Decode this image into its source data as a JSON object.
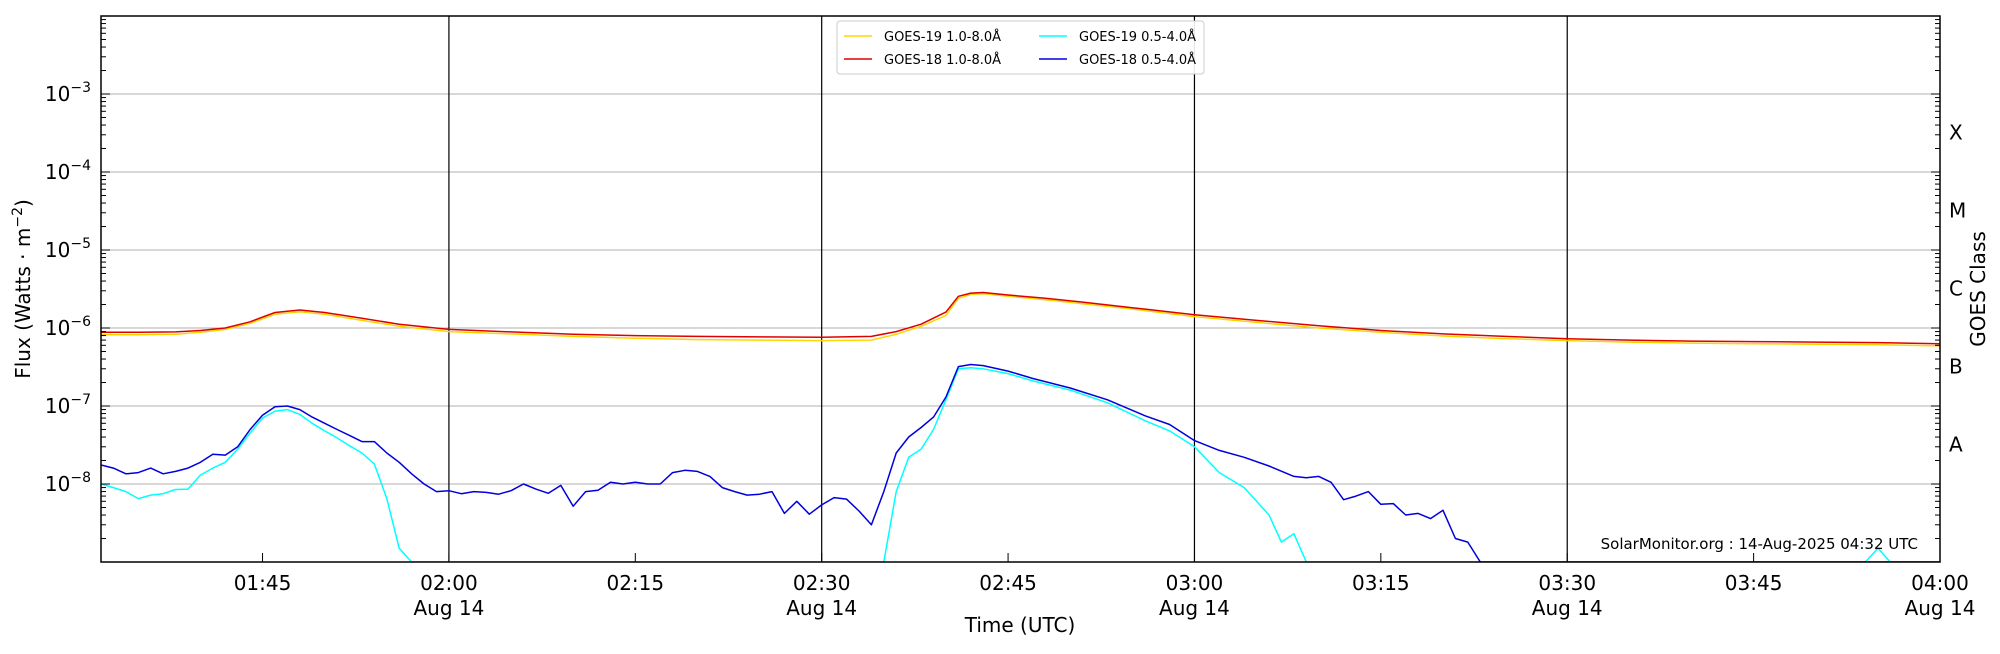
{
  "chart_data": {
    "type": "line",
    "xlabel": "Time (UTC)",
    "ylabel": "Flux (Watts · m",
    "ylabel_sup": "−2",
    "ylabel_close": ")",
    "right_label": "GOES Class",
    "credit": "SolarMonitor.org : 14-Aug-2025 04:32 UTC",
    "y_scale": "log",
    "ylim": [
      1e-09,
      0.01
    ],
    "xlim": [
      "01:32",
      "04:00"
    ],
    "grid": "horizontal",
    "legend_position": "top-center",
    "x_ticks": [
      {
        "time": "01:45",
        "label": "01:45",
        "sublabel": ""
      },
      {
        "time": "02:00",
        "label": "02:00",
        "sublabel": "Aug 14"
      },
      {
        "time": "02:15",
        "label": "02:15",
        "sublabel": ""
      },
      {
        "time": "02:30",
        "label": "02:30",
        "sublabel": "Aug 14"
      },
      {
        "time": "02:45",
        "label": "02:45",
        "sublabel": ""
      },
      {
        "time": "03:00",
        "label": "03:00",
        "sublabel": "Aug 14"
      },
      {
        "time": "03:15",
        "label": "03:15",
        "sublabel": ""
      },
      {
        "time": "03:30",
        "label": "03:30",
        "sublabel": "Aug 14"
      },
      {
        "time": "03:45",
        "label": "03:45",
        "sublabel": ""
      },
      {
        "time": "04:00",
        "label": "04:00",
        "sublabel": "Aug 14"
      }
    ],
    "vertical_lines": [
      "02:00",
      "02:30",
      "03:00",
      "03:30"
    ],
    "y_ticks": [
      {
        "value": 1e-08,
        "base": "10",
        "exp": "−8"
      },
      {
        "value": 1e-07,
        "base": "10",
        "exp": "−7"
      },
      {
        "value": 1e-06,
        "base": "10",
        "exp": "−6"
      },
      {
        "value": 1e-05,
        "base": "10",
        "exp": "−5"
      },
      {
        "value": 0.0001,
        "base": "10",
        "exp": "−4"
      },
      {
        "value": 0.001,
        "base": "10",
        "exp": "−3"
      }
    ],
    "goes_classes": [
      {
        "label": "A",
        "value": 3.2e-08
      },
      {
        "label": "B",
        "value": 3.2e-07
      },
      {
        "label": "C",
        "value": 3.2e-06
      },
      {
        "label": "M",
        "value": 3.2e-05
      },
      {
        "label": "X",
        "value": 0.00032
      }
    ],
    "series": [
      {
        "name": "GOES-19 1.0-8.0Å",
        "color": "#FFD700",
        "points": [
          [
            "01:32",
            8.2e-07
          ],
          [
            "01:35",
            8.2e-07
          ],
          [
            "01:38",
            8.3e-07
          ],
          [
            "01:40",
            8.8e-07
          ],
          [
            "01:42",
            9.6e-07
          ],
          [
            "01:44",
            1.15e-06
          ],
          [
            "01:46",
            1.5e-06
          ],
          [
            "01:48",
            1.62e-06
          ],
          [
            "01:50",
            1.5e-06
          ],
          [
            "01:53",
            1.25e-06
          ],
          [
            "01:56",
            1.05e-06
          ],
          [
            "02:00",
            9e-07
          ],
          [
            "02:05",
            8.4e-07
          ],
          [
            "02:10",
            7.8e-07
          ],
          [
            "02:15",
            7.4e-07
          ],
          [
            "02:20",
            7.1e-07
          ],
          [
            "02:25",
            7e-07
          ],
          [
            "02:30",
            6.9e-07
          ],
          [
            "02:34",
            7e-07
          ],
          [
            "02:36",
            8.3e-07
          ],
          [
            "02:38",
            1.05e-06
          ],
          [
            "02:40",
            1.45e-06
          ],
          [
            "02:41",
            2.4e-06
          ],
          [
            "02:42",
            2.7e-06
          ],
          [
            "02:43",
            2.75e-06
          ],
          [
            "02:45",
            2.55e-06
          ],
          [
            "02:48",
            2.3e-06
          ],
          [
            "02:51",
            2.05e-06
          ],
          [
            "02:55",
            1.75e-06
          ],
          [
            "03:00",
            1.4e-06
          ],
          [
            "03:05",
            1.18e-06
          ],
          [
            "03:10",
            1e-06
          ],
          [
            "03:15",
            8.8e-07
          ],
          [
            "03:20",
            7.9e-07
          ],
          [
            "03:25",
            7.3e-07
          ],
          [
            "03:30",
            6.9e-07
          ],
          [
            "03:35",
            6.6e-07
          ],
          [
            "03:40",
            6.4e-07
          ],
          [
            "03:45",
            6.3e-07
          ],
          [
            "03:50",
            6.2e-07
          ],
          [
            "03:55",
            6.1e-07
          ],
          [
            "04:00",
            5.9e-07
          ]
        ]
      },
      {
        "name": "GOES-18 1.0-8.0Å",
        "color": "#E00000",
        "points": [
          [
            "01:32",
            8.8e-07
          ],
          [
            "01:35",
            8.8e-07
          ],
          [
            "01:38",
            8.9e-07
          ],
          [
            "01:40",
            9.3e-07
          ],
          [
            "01:42",
            1e-06
          ],
          [
            "01:44",
            1.2e-06
          ],
          [
            "01:46",
            1.58e-06
          ],
          [
            "01:48",
            1.7e-06
          ],
          [
            "01:50",
            1.58e-06
          ],
          [
            "01:53",
            1.33e-06
          ],
          [
            "01:56",
            1.12e-06
          ],
          [
            "02:00",
            9.6e-07
          ],
          [
            "02:05",
            8.9e-07
          ],
          [
            "02:10",
            8.3e-07
          ],
          [
            "02:15",
            8e-07
          ],
          [
            "02:20",
            7.8e-07
          ],
          [
            "02:25",
            7.7e-07
          ],
          [
            "02:30",
            7.6e-07
          ],
          [
            "02:34",
            7.8e-07
          ],
          [
            "02:36",
            9e-07
          ],
          [
            "02:38",
            1.12e-06
          ],
          [
            "02:40",
            1.6e-06
          ],
          [
            "02:41",
            2.55e-06
          ],
          [
            "02:42",
            2.8e-06
          ],
          [
            "02:43",
            2.85e-06
          ],
          [
            "02:45",
            2.65e-06
          ],
          [
            "02:48",
            2.4e-06
          ],
          [
            "02:51",
            2.15e-06
          ],
          [
            "02:55",
            1.82e-06
          ],
          [
            "03:00",
            1.48e-06
          ],
          [
            "03:05",
            1.25e-06
          ],
          [
            "03:10",
            1.07e-06
          ],
          [
            "03:15",
            9.3e-07
          ],
          [
            "03:20",
            8.4e-07
          ],
          [
            "03:25",
            7.8e-07
          ],
          [
            "03:30",
            7.3e-07
          ],
          [
            "03:35",
            7e-07
          ],
          [
            "03:40",
            6.8e-07
          ],
          [
            "03:45",
            6.7e-07
          ],
          [
            "03:50",
            6.6e-07
          ],
          [
            "03:55",
            6.5e-07
          ],
          [
            "04:00",
            6.3e-07
          ]
        ]
      },
      {
        "name": "GOES-19 0.5-4.0Å",
        "color": "#00FFFF",
        "points": [
          [
            "01:32",
            1e-08
          ],
          [
            "01:33",
            9e-09
          ],
          [
            "01:34",
            8e-09
          ],
          [
            "01:35",
            6.5e-09
          ],
          [
            "01:36",
            7.2e-09
          ],
          [
            "01:37",
            7.5e-09
          ],
          [
            "01:38",
            8.5e-09
          ],
          [
            "01:39",
            8.6e-09
          ],
          [
            "01:40",
            1.3e-08
          ],
          [
            "01:41",
            1.6e-08
          ],
          [
            "01:42",
            1.9e-08
          ],
          [
            "01:43",
            2.8e-08
          ],
          [
            "01:44",
            4.5e-08
          ],
          [
            "01:45",
            7e-08
          ],
          [
            "01:46",
            8.6e-08
          ],
          [
            "01:47",
            9e-08
          ],
          [
            "01:48",
            7.8e-08
          ],
          [
            "01:49",
            6e-08
          ],
          [
            "01:50",
            4.8e-08
          ],
          [
            "01:51",
            3.9e-08
          ],
          [
            "01:52",
            3.1e-08
          ],
          [
            "01:53",
            2.5e-08
          ],
          [
            "01:54",
            1.8e-08
          ],
          [
            "01:55",
            6.5e-09
          ],
          [
            "01:56",
            1.5e-09
          ],
          [
            "01:57",
            1e-09
          ],
          [
            "02:35",
            1e-09
          ],
          [
            "02:36",
            8e-09
          ],
          [
            "02:37",
            2.2e-08
          ],
          [
            "02:38",
            2.8e-08
          ],
          [
            "02:39",
            5e-08
          ],
          [
            "02:40",
            1.2e-07
          ],
          [
            "02:41",
            3e-07
          ],
          [
            "02:42",
            3.1e-07
          ],
          [
            "02:43",
            3e-07
          ],
          [
            "02:45",
            2.6e-07
          ],
          [
            "02:47",
            2.1e-07
          ],
          [
            "02:50",
            1.6e-07
          ],
          [
            "02:53",
            1.1e-07
          ],
          [
            "02:56",
            6.5e-08
          ],
          [
            "02:58",
            4.8e-08
          ],
          [
            "03:00",
            3e-08
          ],
          [
            "03:02",
            1.4e-08
          ],
          [
            "03:04",
            9e-09
          ],
          [
            "03:05",
            6e-09
          ],
          [
            "03:06",
            4e-09
          ],
          [
            "03:07",
            1.8e-09
          ],
          [
            "03:08",
            2.3e-09
          ],
          [
            "03:09",
            1e-09
          ],
          [
            "03:54",
            1e-09
          ],
          [
            "03:55",
            1.5e-09
          ],
          [
            "03:56",
            1e-09
          ],
          [
            "04:00",
            1e-09
          ]
        ]
      },
      {
        "name": "GOES-18 0.5-4.0Å",
        "color": "#0000DD",
        "points": [
          [
            "01:32",
            1.75e-08
          ],
          [
            "01:33",
            1.6e-08
          ],
          [
            "01:34",
            1.35e-08
          ],
          [
            "01:35",
            1.4e-08
          ],
          [
            "01:36",
            1.6e-08
          ],
          [
            "01:37",
            1.35e-08
          ],
          [
            "01:38",
            1.45e-08
          ],
          [
            "01:39",
            1.6e-08
          ],
          [
            "01:40",
            1.9e-08
          ],
          [
            "01:41",
            2.4e-08
          ],
          [
            "01:42",
            2.35e-08
          ],
          [
            "01:43",
            3e-08
          ],
          [
            "01:44",
            5e-08
          ],
          [
            "01:45",
            7.6e-08
          ],
          [
            "01:46",
            9.8e-08
          ],
          [
            "01:47",
            1e-07
          ],
          [
            "01:48",
            9e-08
          ],
          [
            "01:49",
            7.2e-08
          ],
          [
            "01:50",
            6e-08
          ],
          [
            "01:51",
            5e-08
          ],
          [
            "01:52",
            4.2e-08
          ],
          [
            "01:53",
            3.5e-08
          ],
          [
            "01:54",
            3.5e-08
          ],
          [
            "01:55",
            2.5e-08
          ],
          [
            "01:56",
            1.9e-08
          ],
          [
            "01:57",
            1.35e-08
          ],
          [
            "01:58",
            1e-08
          ],
          [
            "01:59",
            8e-09
          ],
          [
            "02:00",
            8.2e-09
          ],
          [
            "02:01",
            7.5e-09
          ],
          [
            "02:02",
            8e-09
          ],
          [
            "02:03",
            7.8e-09
          ],
          [
            "02:04",
            7.4e-09
          ],
          [
            "02:05",
            8.2e-09
          ],
          [
            "02:06",
            1e-08
          ],
          [
            "02:07",
            8.6e-09
          ],
          [
            "02:08",
            7.6e-09
          ],
          [
            "02:09",
            9.6e-09
          ],
          [
            "02:10",
            5.2e-09
          ],
          [
            "02:11",
            8e-09
          ],
          [
            "02:12",
            8.3e-09
          ],
          [
            "02:13",
            1.05e-08
          ],
          [
            "02:14",
            1e-08
          ],
          [
            "02:15",
            1.05e-08
          ],
          [
            "02:16",
            1e-08
          ],
          [
            "02:17",
            1e-08
          ],
          [
            "02:18",
            1.4e-08
          ],
          [
            "02:19",
            1.5e-08
          ],
          [
            "02:20",
            1.45e-08
          ],
          [
            "02:21",
            1.25e-08
          ],
          [
            "02:22",
            9e-09
          ],
          [
            "02:23",
            8e-09
          ],
          [
            "02:24",
            7.2e-09
          ],
          [
            "02:25",
            7.4e-09
          ],
          [
            "02:26",
            8e-09
          ],
          [
            "02:27",
            4.2e-09
          ],
          [
            "02:28",
            6e-09
          ],
          [
            "02:29",
            4.1e-09
          ],
          [
            "02:30",
            5.4e-09
          ],
          [
            "02:31",
            6.7e-09
          ],
          [
            "02:32",
            6.4e-09
          ],
          [
            "02:33",
            4.5e-09
          ],
          [
            "02:34",
            3e-09
          ],
          [
            "02:35",
            8e-09
          ],
          [
            "02:36",
            2.5e-08
          ],
          [
            "02:37",
            4e-08
          ],
          [
            "02:38",
            5.3e-08
          ],
          [
            "02:39",
            7.2e-08
          ],
          [
            "02:40",
            1.3e-07
          ],
          [
            "02:41",
            3.2e-07
          ],
          [
            "02:42",
            3.4e-07
          ],
          [
            "02:43",
            3.3e-07
          ],
          [
            "02:45",
            2.8e-07
          ],
          [
            "02:47",
            2.25e-07
          ],
          [
            "02:50",
            1.7e-07
          ],
          [
            "02:53",
            1.2e-07
          ],
          [
            "02:56",
            7.5e-08
          ],
          [
            "02:58",
            5.8e-08
          ],
          [
            "03:00",
            3.6e-08
          ],
          [
            "03:02",
            2.7e-08
          ],
          [
            "03:04",
            2.2e-08
          ],
          [
            "03:06",
            1.7e-08
          ],
          [
            "03:08",
            1.25e-08
          ],
          [
            "03:09",
            1.2e-08
          ],
          [
            "03:10",
            1.25e-08
          ],
          [
            "03:11",
            1.05e-08
          ],
          [
            "03:12",
            6.3e-09
          ],
          [
            "03:13",
            7e-09
          ],
          [
            "03:14",
            8e-09
          ],
          [
            "03:15",
            5.5e-09
          ],
          [
            "03:16",
            5.6e-09
          ],
          [
            "03:17",
            4e-09
          ],
          [
            "03:18",
            4.2e-09
          ],
          [
            "03:19",
            3.6e-09
          ],
          [
            "03:20",
            4.6e-09
          ],
          [
            "03:21",
            2e-09
          ],
          [
            "03:22",
            1.8e-09
          ],
          [
            "03:23",
            1e-09
          ],
          [
            "04:00",
            1e-09
          ]
        ]
      }
    ]
  }
}
